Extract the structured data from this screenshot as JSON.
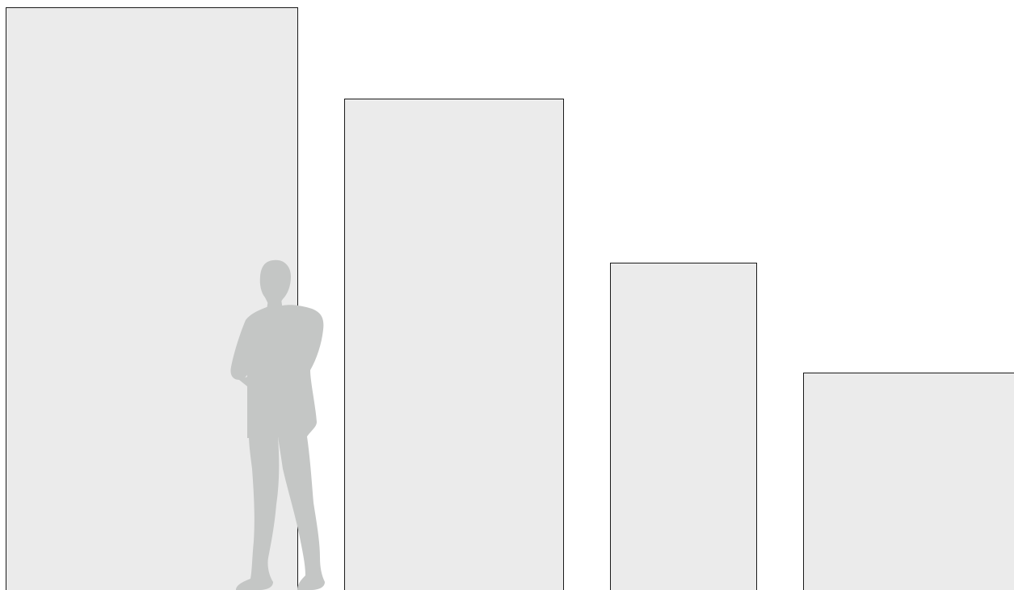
{
  "panels": [
    {
      "id": "panel-1",
      "label": ""
    },
    {
      "id": "panel-2",
      "label": ""
    },
    {
      "id": "panel-3",
      "label": ""
    },
    {
      "id": "panel-4",
      "label": ""
    }
  ],
  "colors": {
    "panel_fill": "#ebebeb",
    "panel_stroke": "#1a1a1a",
    "silhouette": "#c4c6c5",
    "background": "#ffffff"
  },
  "icons": {
    "scale_figure": "person-silhouette-icon"
  }
}
